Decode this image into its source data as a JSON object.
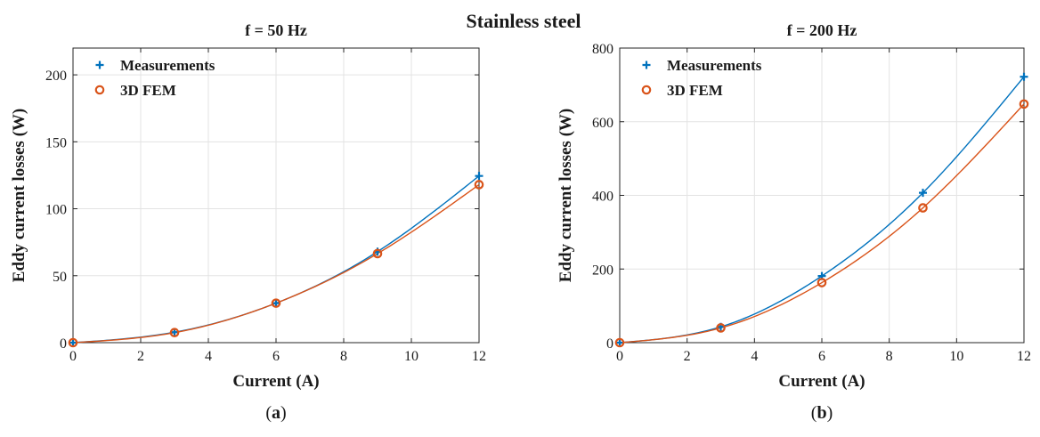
{
  "figure": {
    "suptitle": "Stainless steel"
  },
  "colors": {
    "measurements": "#0072BD",
    "fem": "#D95319",
    "grid": "#e3e3e3",
    "axis": "#262626"
  },
  "chart_data": [
    {
      "type": "line",
      "panel_label_open": "(",
      "panel_label_letter": "a",
      "panel_label_close": ")",
      "title": "f = 50 Hz",
      "xlabel": "Current (A)",
      "ylabel": "Eddy current losses (W)",
      "xlim": [
        0,
        12
      ],
      "ylim": [
        0,
        220
      ],
      "xticks": [
        0,
        2,
        4,
        6,
        8,
        10,
        12
      ],
      "yticks": [
        0,
        50,
        100,
        150,
        200
      ],
      "grid": true,
      "legend_position": "top-left",
      "x": [
        0,
        3,
        6,
        9,
        12
      ],
      "series": [
        {
          "name": "Measurements",
          "marker": "plus",
          "values": [
            0,
            7.8,
            29.5,
            68,
            124.5
          ]
        },
        {
          "name": "3D FEM",
          "marker": "circle",
          "values": [
            0,
            7.5,
            29.5,
            66.5,
            118
          ]
        }
      ]
    },
    {
      "type": "line",
      "panel_label_open": "(",
      "panel_label_letter": "b",
      "panel_label_close": ")",
      "title": "f = 200 Hz",
      "xlabel": "Current (A)",
      "ylabel": "Eddy current losses (W)",
      "xlim": [
        0,
        12
      ],
      "ylim": [
        0,
        800
      ],
      "xticks": [
        0,
        2,
        4,
        6,
        8,
        10,
        12
      ],
      "yticks": [
        0,
        200,
        400,
        600,
        800
      ],
      "grid": true,
      "legend_position": "top-left",
      "x": [
        0,
        3,
        6,
        9,
        12
      ],
      "series": [
        {
          "name": "Measurements",
          "marker": "plus",
          "values": [
            0,
            43,
            181,
            407,
            722
          ]
        },
        {
          "name": "3D FEM",
          "marker": "circle",
          "values": [
            0,
            40,
            163,
            366,
            648
          ]
        }
      ]
    }
  ]
}
